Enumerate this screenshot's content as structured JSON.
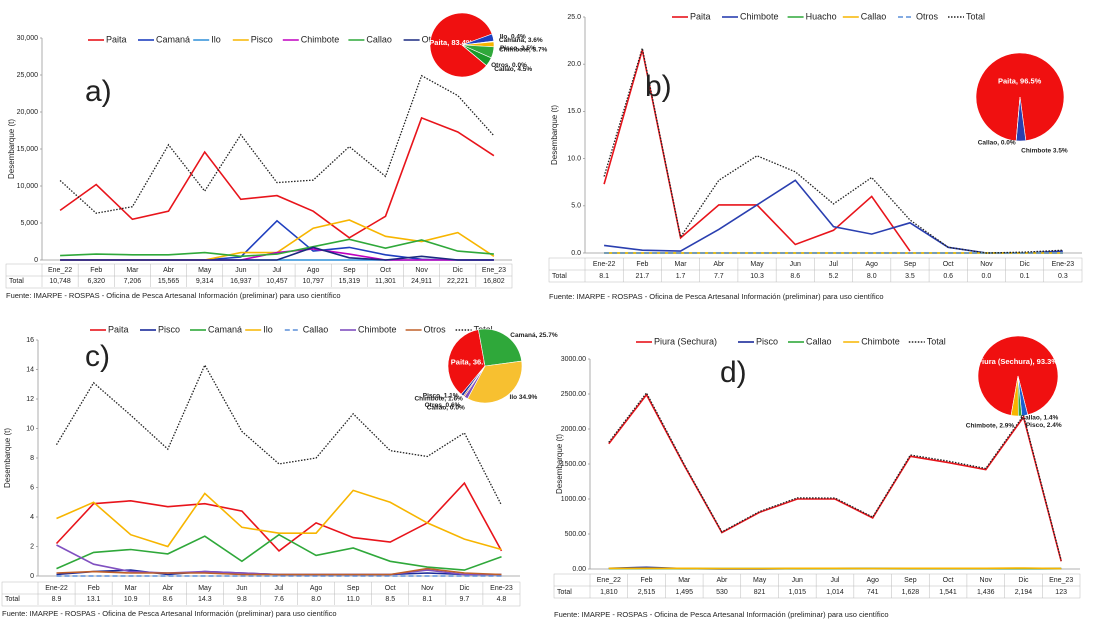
{
  "chart_data": [
    {
      "type": "line",
      "panel_label": "a)",
      "y_label": "Desembarque (t)",
      "total_label": "Total",
      "source": "Fuente: IMARPE - ROSPAS - Oficina de Pesca Artesanal Información (preliminar)  para uso científico",
      "categories": [
        "Ene_22",
        "Feb",
        "Mar",
        "Abr",
        "May",
        "Jun",
        "Jul",
        "Ago",
        "Sep",
        "Oct",
        "Nov",
        "Dic",
        "Ene_23"
      ],
      "ylim": [
        0,
        30000
      ],
      "yticks": [
        0,
        {
          "value": 5000,
          "label": "5,000"
        },
        {
          "value": 10000,
          "label": "10,000"
        },
        {
          "value": 15000,
          "label": "15,000"
        },
        {
          "value": 20000,
          "label": "20,000"
        },
        {
          "value": 25000,
          "label": "25,000"
        },
        {
          "value": 30000,
          "label": "30,000"
        }
      ],
      "grid": false,
      "series": [
        {
          "name": "Paita",
          "color": "#e8141b",
          "values": [
            6700,
            10200,
            5500,
            6600,
            14600,
            8200,
            8700,
            6600,
            3000,
            5900,
            19200,
            17300,
            14100
          ]
        },
        {
          "name": "Camaná",
          "color": "#1f3fbf",
          "values": [
            0,
            0,
            0,
            0,
            0,
            400,
            5300,
            1200,
            1700,
            700,
            100,
            0,
            0
          ]
        },
        {
          "name": "Ilo",
          "color": "#2f8fd8",
          "values": [
            0,
            0,
            0,
            0,
            0,
            0,
            0,
            0,
            0,
            0,
            0,
            0,
            0
          ]
        },
        {
          "name": "Pisco",
          "color": "#f7b500",
          "values": [
            0,
            0,
            0,
            0,
            0,
            1000,
            1000,
            4300,
            5400,
            3200,
            2500,
            3700,
            500
          ]
        },
        {
          "name": "Chimbote",
          "color": "#c000c0",
          "values": [
            0,
            0,
            0,
            0,
            0,
            0,
            1000,
            1500,
            800,
            0,
            0,
            0,
            0
          ]
        },
        {
          "name": "Callao",
          "color": "#2fa83a",
          "values": [
            600,
            800,
            700,
            700,
            1000,
            500,
            800,
            1800,
            2800,
            1600,
            2700,
            1200,
            800
          ]
        },
        {
          "name": "Otros",
          "color": "#1a2a80",
          "values": [
            0,
            0,
            0,
            0,
            0,
            0,
            0,
            1700,
            300,
            0,
            500,
            0,
            0
          ]
        },
        {
          "name": "Total",
          "color": "#222222",
          "style": "dotted",
          "values": [
            10748,
            6320,
            7206,
            15565,
            9314,
            16937,
            10457,
            10797,
            15319,
            11301,
            24911,
            22221,
            16802
          ],
          "value_labels": [
            "10,748",
            "6,320",
            "7,206",
            "15,565",
            "9,314",
            "16,937",
            "10,457",
            "10,797",
            "15,319",
            "11,301",
            "24,911",
            "22,221",
            "16,802"
          ]
        }
      ],
      "pie": {
        "labels": [
          "Paita, 83.4%",
          "Camaná, 3.6%",
          "Ilo, 0.4%",
          "Pisco, 2.5%",
          "Chimbote, 5.7%",
          "Callao, 4.5%",
          "Otros, 0.0%"
        ],
        "values": [
          83.4,
          3.6,
          0.4,
          2.5,
          5.7,
          4.5,
          0.0
        ],
        "colors": [
          "#f01010",
          "#1f3fbf",
          "#2f8fd8",
          "#f7b500",
          "#2fa83a",
          "#1a9a2a",
          "#1a2a80"
        ]
      }
    },
    {
      "type": "line",
      "panel_label": "b)",
      "y_label": "Desembarque (t)",
      "total_label": "Total",
      "source": "Fuente: IMARPE - ROSPAS - Oficina de Pesca Artesanal Información (preliminar)  para uso científico",
      "categories": [
        "Ene-22",
        "Feb",
        "Mar",
        "Abr",
        "May",
        "Jun",
        "Jul",
        "Ago",
        "Sep",
        "Oct",
        "Nov",
        "Dic",
        "Ene-23"
      ],
      "ylim": [
        0,
        25
      ],
      "yticks": [
        {
          "value": 0,
          "label": "0.0"
        },
        {
          "value": 5,
          "label": "5.0"
        },
        {
          "value": 10,
          "label": "10.0"
        },
        {
          "value": 15,
          "label": "15.0"
        },
        {
          "value": 20,
          "label": "20.0"
        },
        {
          "value": 25,
          "label": "25.0"
        }
      ],
      "grid": false,
      "series": [
        {
          "name": "Paita",
          "color": "#e8141b",
          "values": [
            7.3,
            21.5,
            1.6,
            5.1,
            5.1,
            0.9,
            2.4,
            6.0,
            0.2,
            null,
            null,
            null,
            null
          ]
        },
        {
          "name": "Chimbote",
          "color": "#2a3fb0",
          "values": [
            0.8,
            0.3,
            0.2,
            2.5,
            5.1,
            7.7,
            2.8,
            2.0,
            3.2,
            0.6,
            0,
            0,
            0.2
          ]
        },
        {
          "name": "Huacho",
          "color": "#2fa83a",
          "values": [
            0,
            0,
            0,
            0,
            0,
            0,
            0,
            0,
            0,
            0,
            0,
            0,
            0
          ]
        },
        {
          "name": "Callao",
          "color": "#f7b500",
          "values": [
            0,
            0,
            0,
            0,
            0,
            0,
            0,
            0,
            0,
            0,
            0,
            0,
            0
          ]
        },
        {
          "name": "Otros",
          "color": "#5b8fd8",
          "style": "dashed",
          "values": [
            0,
            0,
            0,
            0,
            0,
            0,
            0,
            0,
            0,
            0,
            0,
            0,
            0
          ]
        },
        {
          "name": "Total",
          "color": "#222222",
          "style": "dotted",
          "values": [
            8.1,
            21.7,
            1.7,
            7.7,
            10.3,
            8.6,
            5.2,
            8.0,
            3.5,
            0.6,
            0.0,
            0.1,
            0.3
          ],
          "value_labels": [
            "8.1",
            "21.7",
            "1.7",
            "7.7",
            "10.3",
            "8.6",
            "5.2",
            "8.0",
            "3.5",
            "0.6",
            "0.0",
            "0.1",
            "0.3"
          ]
        }
      ],
      "pie": {
        "labels": [
          "Paita, 96.5%",
          "Chimbote 3.5%",
          "Callao, 0.0%"
        ],
        "values": [
          96.5,
          3.5,
          0.0
        ],
        "colors": [
          "#f01010",
          "#2a3fb0",
          "#f7b500"
        ]
      }
    },
    {
      "type": "line",
      "panel_label": "c)",
      "y_label": "Desembarque (t)",
      "total_label": "Total",
      "source": "Fuente: IMARPE - ROSPAS - Oficina de Pesca Artesanal Información (preliminar)  para uso científico",
      "categories": [
        "Ene-22",
        "Feb",
        "Mar",
        "Abr",
        "May",
        "Jun",
        "Jul",
        "Ago",
        "Sep",
        "Oct",
        "Nov",
        "Dic",
        "Ene-23"
      ],
      "ylim": [
        0,
        16
      ],
      "yticks": [
        0,
        2,
        4,
        6,
        8,
        10,
        12,
        14,
        16
      ],
      "grid": false,
      "series": [
        {
          "name": "Paita",
          "color": "#e8141b",
          "values": [
            2.2,
            4.9,
            5.1,
            4.7,
            4.9,
            4.4,
            1.7,
            3.6,
            2.6,
            2.3,
            3.6,
            6.3,
            1.7
          ]
        },
        {
          "name": "Pisco",
          "color": "#1a2a9a",
          "values": [
            0.1,
            0.3,
            0.4,
            0.1,
            0.3,
            0.2,
            0.1,
            0.1,
            0.1,
            0.1,
            0.2,
            0.1,
            0.1
          ]
        },
        {
          "name": "Camaná",
          "color": "#2fa83a",
          "values": [
            0.5,
            1.6,
            1.8,
            1.5,
            2.7,
            1.0,
            2.8,
            1.4,
            1.9,
            1.0,
            0.6,
            0.4,
            1.3
          ]
        },
        {
          "name": "Ilo",
          "color": "#f7b500",
          "values": [
            3.9,
            5.0,
            2.8,
            2.0,
            5.6,
            3.3,
            2.9,
            2.9,
            5.8,
            5.0,
            3.6,
            2.5,
            1.8
          ]
        },
        {
          "name": "Callao",
          "color": "#5b8fd8",
          "style": "dashed",
          "values": [
            0,
            0,
            0,
            0,
            0,
            0,
            0,
            0,
            0,
            0,
            0,
            0,
            0
          ]
        },
        {
          "name": "Chimbote",
          "color": "#8050c0",
          "values": [
            2.1,
            0.8,
            0.3,
            0.2,
            0.3,
            0.2,
            0.1,
            0.1,
            0.1,
            0.1,
            0.4,
            0.1,
            0.1
          ]
        },
        {
          "name": "Otros",
          "color": "#c0602a",
          "values": [
            0.2,
            0.3,
            0.2,
            0.2,
            0.2,
            0.1,
            0.1,
            0.1,
            0.1,
            0.1,
            0.5,
            0.2,
            0.1
          ]
        },
        {
          "name": "Total",
          "color": "#222222",
          "style": "dotted",
          "values": [
            8.9,
            13.1,
            10.9,
            8.6,
            14.3,
            9.8,
            7.6,
            8.0,
            11.0,
            8.5,
            8.1,
            9.7,
            4.8
          ],
          "value_labels": [
            "8.9",
            "13.1",
            "10.9",
            "8.6",
            "14.3",
            "9.8",
            "7.6",
            "8.0",
            "11.0",
            "8.5",
            "8.1",
            "9.7",
            "4.8"
          ]
        }
      ],
      "pie": {
        "labels": [
          "Paita, 36.0%",
          "Camaná, 25.7%",
          "Ilo 34.9%",
          "Callao, 0.0%",
          "Chimbote, 1.6%",
          "Otros, 0.6%",
          "Pisco, 1.1%"
        ],
        "values": [
          36.0,
          25.7,
          34.9,
          0.0,
          1.6,
          0.6,
          1.1
        ],
        "colors": [
          "#f01010",
          "#2fa83a",
          "#f7c030",
          "#5b8fd8",
          "#8050c0",
          "#c0602a",
          "#1a2a9a"
        ]
      }
    },
    {
      "type": "line",
      "panel_label": "d)",
      "y_label": "Desembarque (t)",
      "total_label": "Total",
      "source": "Fuente: IMARPE - ROSPAS - Oficina de Pesca Artesanal Información (preliminar)  para uso científico",
      "categories": [
        "Ene_22",
        "Feb",
        "Mar",
        "Abr",
        "May",
        "Jun",
        "Jul",
        "Ago",
        "Sep",
        "Oct",
        "Nov",
        "Dic",
        "Ene_23"
      ],
      "ylim": [
        0,
        3000
      ],
      "yticks": [
        {
          "value": 0,
          "label": "0.00"
        },
        {
          "value": 500,
          "label": "500.00"
        },
        {
          "value": 1000,
          "label": "1000.00"
        },
        {
          "value": 1500,
          "label": "1500.00"
        },
        {
          "value": 2000,
          "label": "2000.00"
        },
        {
          "value": 2500,
          "label": "2500.00"
        },
        {
          "value": 3000,
          "label": "3000.00"
        }
      ],
      "grid": false,
      "series": [
        {
          "name": "Piura (Sechura)",
          "color": "#e8141b",
          "values": [
            1790,
            2490,
            1480,
            520,
            810,
            1000,
            1000,
            730,
            1610,
            1520,
            1420,
            2170,
            110
          ]
        },
        {
          "name": "Pisco",
          "color": "#1a2a9a",
          "values": [
            10,
            25,
            5,
            0,
            0,
            5,
            10,
            5,
            5,
            5,
            5,
            5,
            5
          ]
        },
        {
          "name": "Callao",
          "color": "#2fa83a",
          "values": [
            5,
            5,
            5,
            5,
            5,
            5,
            5,
            5,
            5,
            5,
            5,
            5,
            5
          ]
        },
        {
          "name": "Chimbote",
          "color": "#f7b500",
          "values": [
            10,
            10,
            10,
            5,
            5,
            10,
            10,
            5,
            10,
            10,
            10,
            15,
            5
          ]
        },
        {
          "name": "Total",
          "color": "#222222",
          "style": "dotted",
          "values": [
            1810,
            2515,
            1495,
            530,
            821,
            1015,
            1014,
            741,
            1628,
            1541,
            1436,
            2194,
            123
          ],
          "value_labels": [
            "1,810",
            "2,515",
            "1,495",
            "530",
            "821",
            "1,015",
            "1,014",
            "741",
            "1,628",
            "1,541",
            "1,436",
            "2,194",
            "123"
          ]
        }
      ],
      "pie": {
        "labels": [
          "Piura (Sechura), 93.3%",
          "Pisco, 2.4%",
          "Callao, 1.4%",
          "Chimbote, 2.9%"
        ],
        "values": [
          93.3,
          2.4,
          1.4,
          2.9
        ],
        "colors": [
          "#f01010",
          "#1a5fd0",
          "#2fa83a",
          "#f7b500"
        ]
      }
    }
  ]
}
